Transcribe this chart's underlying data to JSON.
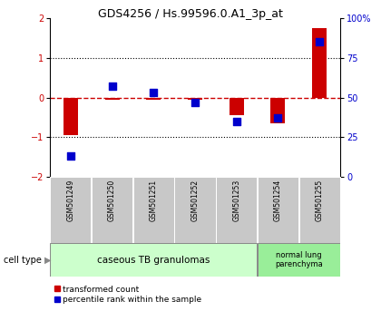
{
  "title": "GDS4256 / Hs.99596.0.A1_3p_at",
  "samples": [
    "GSM501249",
    "GSM501250",
    "GSM501251",
    "GSM501252",
    "GSM501253",
    "GSM501254",
    "GSM501255"
  ],
  "transformed_count": [
    -0.95,
    -0.05,
    -0.05,
    -0.05,
    -0.45,
    -0.65,
    1.75
  ],
  "percentile_rank": [
    13,
    57,
    53,
    47,
    35,
    37,
    85
  ],
  "ylim_left": [
    -2,
    2
  ],
  "ylim_right": [
    0,
    100
  ],
  "yticks_left": [
    -2,
    -1,
    0,
    1,
    2
  ],
  "yticks_right": [
    0,
    25,
    50,
    75,
    100
  ],
  "ytick_labels_right": [
    "0",
    "25",
    "50",
    "75",
    "100%"
  ],
  "bar_color": "#cc0000",
  "dot_color": "#0000cc",
  "zero_line_color": "#cc0000",
  "dotted_line_color": "#000000",
  "group1_label": "caseous TB granulomas",
  "group2_label": "normal lung\nparenchyma",
  "group1_indices": [
    0,
    1,
    2,
    3,
    4
  ],
  "group2_indices": [
    5,
    6
  ],
  "cell_type_label": "cell type",
  "legend_bar_label": "transformed count",
  "legend_dot_label": "percentile rank within the sample",
  "group1_color": "#ccffcc",
  "group2_color": "#99ee99",
  "bg_color": "#ffffff",
  "tick_box_color": "#c8c8c8",
  "bar_width": 0.35,
  "dot_size": 40
}
